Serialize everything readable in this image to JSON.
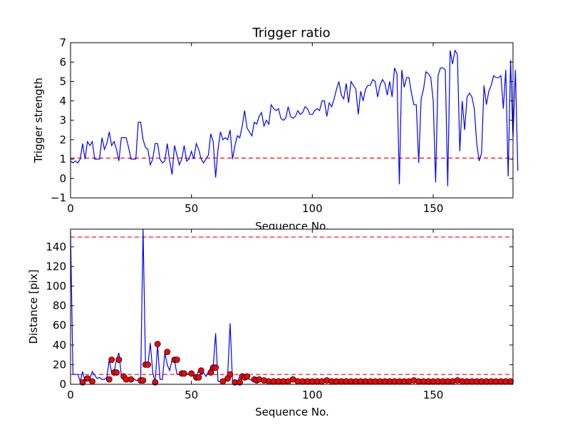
{
  "colors": {
    "line": "#0000ff",
    "threshold": "#ff0000",
    "marker_fill": "#ff0000",
    "marker_edge": "#000000"
  },
  "chart_data": [
    {
      "type": "line",
      "title": "Trigger ratio",
      "xlabel": "Sequence No.",
      "ylabel": "Trigger strength",
      "xlim": [
        0,
        183
      ],
      "ylim": [
        -1,
        7
      ],
      "xticks": [
        0,
        50,
        100,
        150
      ],
      "yticks": [
        -1,
        0,
        1,
        2,
        3,
        4,
        5,
        6,
        7
      ],
      "xtick_labels": [
        "0",
        "50",
        "100",
        "150"
      ],
      "ytick_labels": [
        "−1",
        "0",
        "1",
        "2",
        "3",
        "4",
        "5",
        "6",
        "7"
      ],
      "threshold": 1.05,
      "grid": false,
      "series": [
        {
          "values": [
            0.9,
            0.8,
            0.9,
            0.8,
            1.0,
            1.8,
            1.0,
            1.9,
            1.7,
            1.9,
            1.0,
            1.0,
            1.0,
            2.1,
            1.5,
            1.8,
            2.4,
            1.7,
            1.9,
            1.5,
            0.9,
            2.1,
            2.1,
            2.1,
            1.6,
            1.0,
            1.0,
            1.0,
            2.9,
            2.9,
            2.0,
            1.6,
            1.5,
            0.7,
            1.0,
            1.8,
            1.8,
            1.0,
            0.8,
            0.9,
            1.8,
            0.9,
            0.2,
            1.7,
            1.2,
            0.7,
            1.0,
            1.7,
            0.9,
            1.0,
            1.4,
            1.0,
            1.8,
            1.5,
            1.0,
            0.8,
            1.0,
            1.2,
            2.3,
            1.9,
            0.05,
            1.5,
            2.4,
            2.0,
            2.1,
            2.0,
            2.5,
            1.0,
            1.7,
            2.2,
            2.1,
            2.7,
            3.5,
            2.6,
            2.4,
            2.2,
            2.9,
            2.8,
            3.2,
            3.4,
            2.7,
            3.0,
            2.8,
            3.8,
            3.6,
            3.5,
            3.6,
            3.1,
            3.0,
            3.1,
            3.7,
            3.2,
            3.1,
            3.2,
            3.5,
            3.3,
            3.4,
            3.7,
            3.6,
            3.3,
            3.3,
            3.5,
            3.6,
            3.5,
            4.0,
            4.0,
            3.2,
            3.9,
            3.7,
            4.1,
            4.6,
            5.0,
            4.3,
            4.1,
            4.9,
            3.9,
            5.0,
            4.8,
            4.6,
            3.3,
            4.5,
            4.0,
            4.6,
            4.8,
            4.8,
            5.1,
            5.0,
            4.2,
            4.8,
            5.1,
            4.9,
            4.3,
            5.0,
            4.2,
            5.7,
            5.4,
            -0.3,
            5.6,
            4.7,
            5.2,
            5.2,
            4.4,
            3.8,
            3.8,
            0.8,
            4.1,
            4.6,
            5.5,
            5.4,
            5.2,
            4.0,
            -0.2,
            5.3,
            5.7,
            5.7,
            5.6,
            -0.4,
            6.6,
            5.9,
            6.6,
            6.4,
            1.4,
            4.0,
            2.5,
            4.2,
            4.4,
            4.2,
            3.6,
            1.8,
            0.9,
            1.3,
            4.8,
            3.8,
            4.5,
            4.8,
            5.3,
            5.2,
            5.2,
            5.3,
            3.6,
            5.6,
            0.1,
            6.1,
            2.1,
            5.6,
            0.4
          ]
        }
      ]
    },
    {
      "type": "line",
      "title": "",
      "xlabel": "Sequence No.",
      "ylabel": "Distance [pix]",
      "xlim": [
        0,
        183
      ],
      "ylim": [
        0,
        158
      ],
      "xticks": [
        0,
        50,
        100,
        150
      ],
      "yticks": [
        0,
        20,
        40,
        60,
        80,
        100,
        120,
        140
      ],
      "xtick_labels": [
        "0",
        "50",
        "100",
        "150"
      ],
      "ytick_labels": [
        "0",
        "20",
        "40",
        "60",
        "80",
        "100",
        "120",
        "140"
      ],
      "thresholds": [
        150,
        10
      ],
      "grid": false,
      "series": [
        {
          "values": [
            155,
            10,
            10,
            10,
            3,
            13,
            3,
            5,
            6,
            13,
            9,
            6,
            7,
            5,
            5,
            7,
            25,
            12,
            12,
            25,
            32,
            9,
            5,
            4,
            5,
            5,
            6,
            4,
            4,
            4,
            160,
            20,
            20,
            42,
            12,
            2,
            40,
            5,
            5,
            32,
            20,
            14,
            25,
            25,
            10,
            10,
            11,
            10,
            10,
            11,
            10,
            8,
            8,
            14,
            10,
            12,
            8,
            12,
            17,
            17,
            52,
            3,
            3,
            3,
            5,
            10,
            62,
            2,
            2,
            2,
            8,
            7,
            8,
            6,
            5,
            4,
            4,
            4,
            5,
            4,
            4,
            4,
            3,
            4,
            3,
            3,
            4,
            4,
            4,
            3,
            4,
            4,
            5,
            3,
            4,
            3,
            3,
            3,
            3,
            4,
            3,
            3,
            3,
            4,
            4,
            3,
            3,
            3,
            3,
            3,
            3,
            3,
            4,
            3,
            3,
            3,
            3,
            4,
            3,
            3,
            3,
            3,
            3,
            3,
            3,
            3,
            3,
            3,
            4,
            3,
            3,
            3,
            3,
            3,
            3,
            3,
            3,
            3,
            3,
            3,
            3,
            3,
            4,
            3,
            3,
            3,
            3,
            3,
            3,
            3,
            3,
            3,
            3,
            3,
            3,
            3,
            3,
            3,
            3,
            3,
            3,
            3,
            3,
            4,
            3,
            3,
            3,
            3,
            3,
            3,
            3,
            3,
            3,
            3,
            3,
            3,
            3,
            3,
            3,
            3,
            3,
            3,
            3,
            3
          ]
        },
        {
          "markers": [
            [
              5,
              2
            ],
            [
              7,
              6
            ],
            [
              9,
              3
            ],
            [
              16,
              5
            ],
            [
              17,
              25
            ],
            [
              18,
              12
            ],
            [
              19,
              12
            ],
            [
              20,
              25
            ],
            [
              22,
              8
            ],
            [
              23,
              5
            ],
            [
              25,
              5
            ],
            [
              29,
              4
            ],
            [
              30,
              4
            ],
            [
              31,
              20
            ],
            [
              32,
              20
            ],
            [
              35,
              2
            ],
            [
              36,
              41
            ],
            [
              40,
              33
            ],
            [
              43,
              25
            ],
            [
              44,
              25
            ],
            [
              46,
              11
            ],
            [
              47,
              11
            ],
            [
              50,
              11
            ],
            [
              52,
              7
            ],
            [
              53,
              7
            ],
            [
              54,
              14
            ],
            [
              58,
              12
            ],
            [
              59,
              17
            ],
            [
              60,
              17
            ],
            [
              63,
              3
            ],
            [
              65,
              6
            ],
            [
              66,
              10
            ],
            [
              68,
              2
            ],
            [
              70,
              2
            ],
            [
              71,
              8
            ],
            [
              72,
              7
            ],
            [
              73,
              8
            ],
            [
              76,
              5
            ],
            [
              77,
              4
            ],
            [
              78,
              5
            ],
            [
              80,
              4
            ],
            [
              82,
              3
            ],
            [
              84,
              3
            ],
            [
              86,
              3
            ],
            [
              88,
              3
            ],
            [
              90,
              3
            ],
            [
              92,
              5
            ],
            [
              94,
              3
            ],
            [
              96,
              3
            ],
            [
              98,
              3
            ],
            [
              100,
              3
            ],
            [
              102,
              3
            ],
            [
              104,
              3
            ],
            [
              106,
              4
            ],
            [
              108,
              3
            ],
            [
              110,
              3
            ],
            [
              112,
              3
            ],
            [
              114,
              3
            ],
            [
              116,
              3
            ],
            [
              118,
              3
            ],
            [
              120,
              3
            ],
            [
              122,
              3
            ],
            [
              124,
              3
            ],
            [
              126,
              3
            ],
            [
              128,
              3
            ],
            [
              130,
              3
            ],
            [
              132,
              3
            ],
            [
              134,
              3
            ],
            [
              136,
              3
            ],
            [
              138,
              3
            ],
            [
              140,
              3
            ],
            [
              142,
              4
            ],
            [
              144,
              3
            ],
            [
              146,
              3
            ],
            [
              148,
              3
            ],
            [
              150,
              3
            ],
            [
              152,
              3
            ],
            [
              154,
              3
            ],
            [
              156,
              3
            ],
            [
              158,
              3
            ],
            [
              160,
              4
            ],
            [
              162,
              3
            ],
            [
              164,
              3
            ],
            [
              166,
              3
            ],
            [
              168,
              3
            ],
            [
              170,
              3
            ],
            [
              172,
              3
            ],
            [
              174,
              3
            ],
            [
              176,
              3
            ],
            [
              178,
              3
            ],
            [
              180,
              3
            ],
            [
              182,
              3
            ]
          ]
        }
      ]
    }
  ]
}
